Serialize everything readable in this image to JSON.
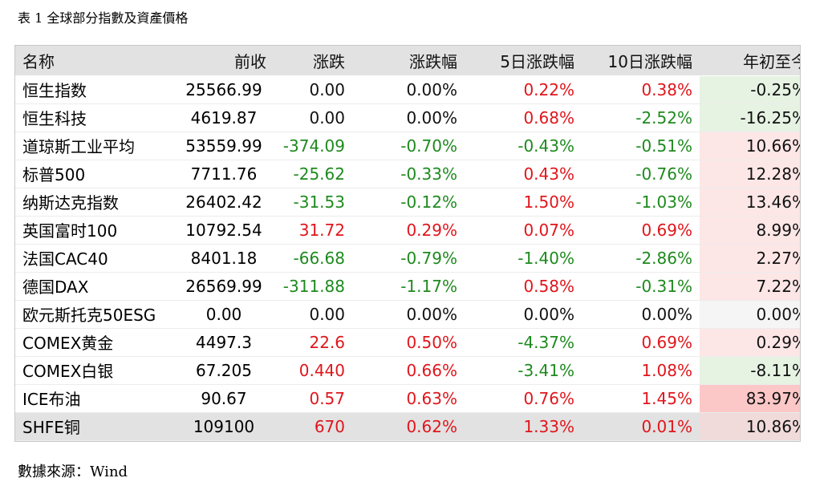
{
  "caption": "表 1 全球部分指數及資產價格",
  "source": "數據來源：Wind",
  "table": {
    "headers": [
      "名称",
      "前收",
      "涨跌",
      "涨跌幅",
      "5日涨跌幅",
      "10日涨跌幅",
      "年初至今"
    ],
    "rows": [
      {
        "name": "恒生指数",
        "prev": "25566.99",
        "chg": "0.00",
        "pct": "0.00%",
        "d5": "0.22%",
        "d10": "0.38%",
        "ytd": "-0.25%"
      },
      {
        "name": "恒生科技",
        "prev": "4619.87",
        "chg": "0.00",
        "pct": "0.00%",
        "d5": "0.68%",
        "d10": "-2.52%",
        "ytd": "-16.25%"
      },
      {
        "name": "道琼斯工业平均",
        "prev": "53559.99",
        "chg": "-374.09",
        "pct": "-0.70%",
        "d5": "-0.43%",
        "d10": "-0.51%",
        "ytd": "10.66%"
      },
      {
        "name": "标普500",
        "prev": "7711.76",
        "chg": "-25.62",
        "pct": "-0.33%",
        "d5": "0.43%",
        "d10": "-0.76%",
        "ytd": "12.28%"
      },
      {
        "name": "纳斯达克指数",
        "prev": "26402.42",
        "chg": "-31.53",
        "pct": "-0.12%",
        "d5": "1.50%",
        "d10": "-1.03%",
        "ytd": "13.46%"
      },
      {
        "name": "英国富时100",
        "prev": "10792.54",
        "chg": "31.72",
        "pct": "0.29%",
        "d5": "0.07%",
        "d10": "0.69%",
        "ytd": "8.99%"
      },
      {
        "name": "法国CAC40",
        "prev": "8401.18",
        "chg": "-66.68",
        "pct": "-0.79%",
        "d5": "-1.40%",
        "d10": "-2.86%",
        "ytd": "2.27%"
      },
      {
        "name": "德国DAX",
        "prev": "26569.99",
        "chg": "-311.88",
        "pct": "-1.17%",
        "d5": "0.58%",
        "d10": "-0.31%",
        "ytd": "7.22%"
      },
      {
        "name": "欧元斯托克50ESG",
        "prev": "0.00",
        "chg": "0.00",
        "pct": "0.00%",
        "d5": "0.00%",
        "d10": "0.00%",
        "ytd": "0.00%"
      },
      {
        "name": "COMEX黄金",
        "prev": "4497.3",
        "chg": "22.6",
        "pct": "0.50%",
        "d5": "-4.37%",
        "d10": "0.69%",
        "ytd": "0.29%"
      },
      {
        "name": "COMEX白银",
        "prev": "67.205",
        "chg": "0.440",
        "pct": "0.66%",
        "d5": "-3.41%",
        "d10": "1.08%",
        "ytd": "-8.11%"
      },
      {
        "name": "ICE布油",
        "prev": "90.67",
        "chg": "0.57",
        "pct": "0.63%",
        "d5": "0.76%",
        "d10": "1.45%",
        "ytd": "83.97%"
      },
      {
        "name": "SHFE铜",
        "prev": "109100",
        "chg": "670",
        "pct": "0.62%",
        "d5": "1.33%",
        "d10": "0.01%",
        "ytd": "10.86%"
      }
    ]
  },
  "colors": {
    "up": "#e0161c",
    "down": "#1e8a1e",
    "header_bg": "#e2e2e2"
  }
}
